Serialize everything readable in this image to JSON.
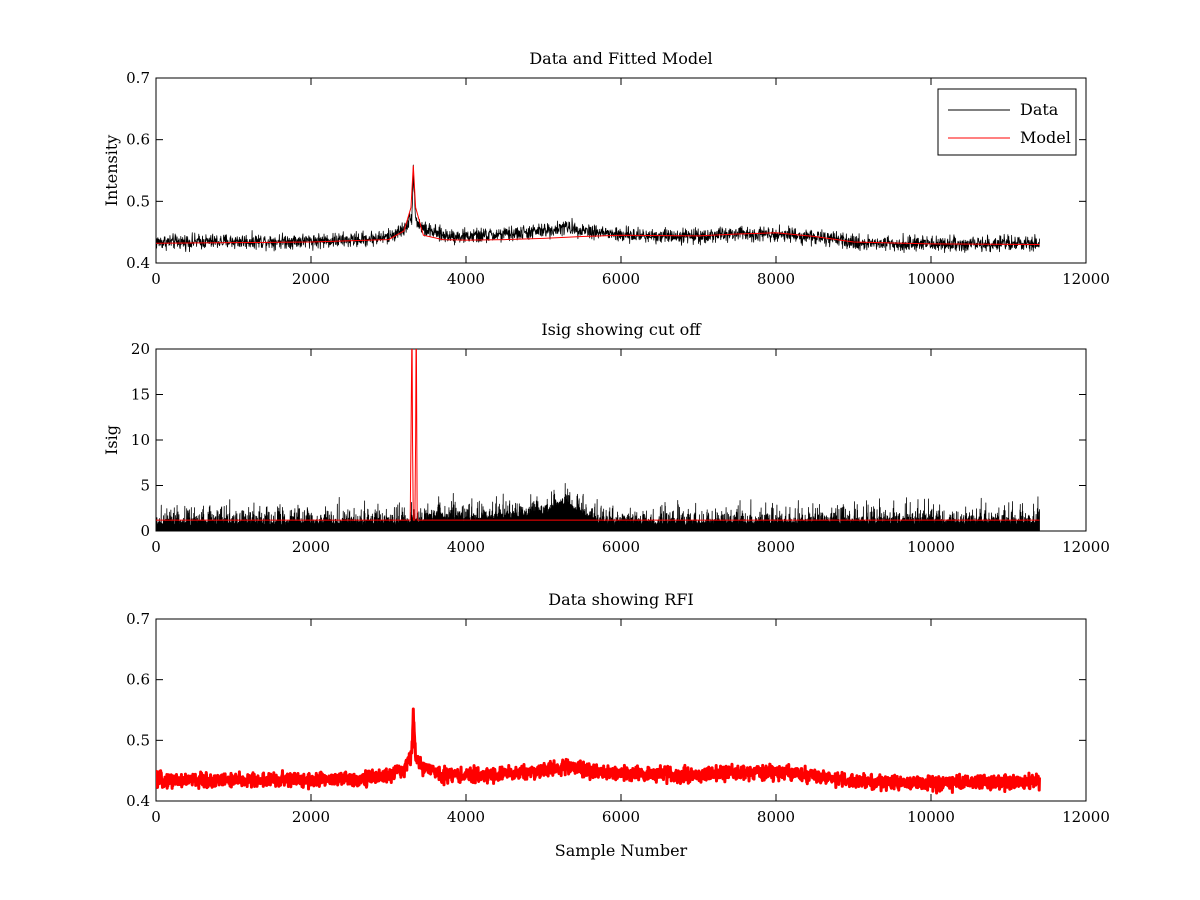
{
  "chart_data": [
    {
      "type": "line",
      "title": "Data and Fitted Model",
      "xlabel": "",
      "ylabel": "Intensity",
      "xlim": [
        0,
        12000
      ],
      "ylim": [
        0.4,
        0.7
      ],
      "xticks": [
        "0",
        "2000",
        "4000",
        "6000",
        "8000",
        "10000",
        "12000"
      ],
      "yticks": [
        "0.4",
        "0.5",
        "0.6",
        "0.7"
      ],
      "legend": {
        "position": "top-right",
        "entries": [
          "Data",
          "Model"
        ]
      },
      "series": [
        {
          "name": "Data",
          "color": "#000000",
          "style": "noisy-line",
          "noise": 0.006,
          "x": [
            0,
            1000,
            2000,
            2500,
            3000,
            3200,
            3300,
            3320,
            3350,
            3450,
            3700,
            4000,
            4500,
            5000,
            5300,
            5600,
            6000,
            7000,
            7500,
            8000,
            8500,
            9000,
            10000,
            11400
          ],
          "values": [
            0.434,
            0.435,
            0.436,
            0.437,
            0.442,
            0.455,
            0.475,
            0.55,
            0.47,
            0.455,
            0.445,
            0.443,
            0.446,
            0.452,
            0.458,
            0.452,
            0.445,
            0.444,
            0.447,
            0.448,
            0.442,
            0.433,
            0.431,
            0.431
          ]
        },
        {
          "name": "Model",
          "color": "#ff0000",
          "style": "line",
          "noise": 0,
          "x": [
            0,
            1000,
            2000,
            3000,
            3200,
            3290,
            3320,
            3350,
            3450,
            3700,
            4000,
            4500,
            5000,
            5500,
            6000,
            7000,
            7500,
            8000,
            8500,
            9000,
            10000,
            11400
          ],
          "values": [
            0.432,
            0.433,
            0.434,
            0.438,
            0.452,
            0.49,
            0.558,
            0.49,
            0.445,
            0.438,
            0.437,
            0.438,
            0.44,
            0.443,
            0.445,
            0.444,
            0.447,
            0.449,
            0.443,
            0.434,
            0.431,
            0.43
          ]
        }
      ]
    },
    {
      "type": "line",
      "title": "Isig showing cut off",
      "xlabel": "",
      "ylabel": "Isig",
      "xlim": [
        0,
        12000
      ],
      "ylim": [
        0,
        20
      ],
      "xticks": [
        "0",
        "2000",
        "4000",
        "6000",
        "8000",
        "10000",
        "12000"
      ],
      "yticks": [
        "0",
        "5",
        "10",
        "15",
        "20"
      ],
      "series": [
        {
          "name": "",
          "color": "#000000",
          "style": "noisy-bars",
          "noise": 1.1,
          "x": [
            0,
            1000,
            2000,
            3000,
            3500,
            3600,
            4000,
            4500,
            5000,
            5250,
            5500,
            5700,
            6000,
            8000,
            10000,
            11400
          ],
          "values": [
            0.6,
            0.6,
            0.6,
            0.6,
            0.7,
            1.3,
            1.0,
            1.3,
            1.8,
            2.8,
            1.8,
            0.7,
            0.6,
            0.7,
            0.7,
            0.7
          ]
        },
        {
          "name": "",
          "color": "#ff0000",
          "style": "line",
          "noise": 0,
          "x": [
            0,
            3280,
            3290,
            3300,
            3305,
            3310,
            3320,
            3340,
            3350,
            3355,
            3360,
            3370,
            11400
          ],
          "values": [
            1.2,
            1.2,
            10,
            20,
            20,
            10,
            1.2,
            1.2,
            10,
            20,
            20,
            1.2,
            1.2
          ]
        }
      ]
    },
    {
      "type": "scatter",
      "title": "Data showing RFI",
      "xlabel": "Sample Number",
      "ylabel": "",
      "xlim": [
        0,
        12000
      ],
      "ylim": [
        0.4,
        0.7
      ],
      "xticks": [
        "0",
        "2000",
        "4000",
        "6000",
        "8000",
        "10000",
        "12000"
      ],
      "yticks": [
        "0.4",
        "0.5",
        "0.6",
        "0.7"
      ],
      "series": [
        {
          "name": "",
          "color": "#ff0000",
          "style": "thick-noisy",
          "noise": 0.006,
          "x": [
            0,
            1000,
            2000,
            2500,
            3000,
            3200,
            3300,
            3320,
            3350,
            3450,
            3700,
            4000,
            4500,
            5000,
            5300,
            5600,
            6000,
            7000,
            7500,
            8000,
            8500,
            9000,
            10000,
            11400
          ],
          "values": [
            0.434,
            0.434,
            0.435,
            0.436,
            0.441,
            0.452,
            0.475,
            0.548,
            0.47,
            0.455,
            0.444,
            0.442,
            0.445,
            0.45,
            0.457,
            0.451,
            0.445,
            0.443,
            0.446,
            0.447,
            0.441,
            0.432,
            0.43,
            0.43
          ]
        }
      ]
    }
  ]
}
